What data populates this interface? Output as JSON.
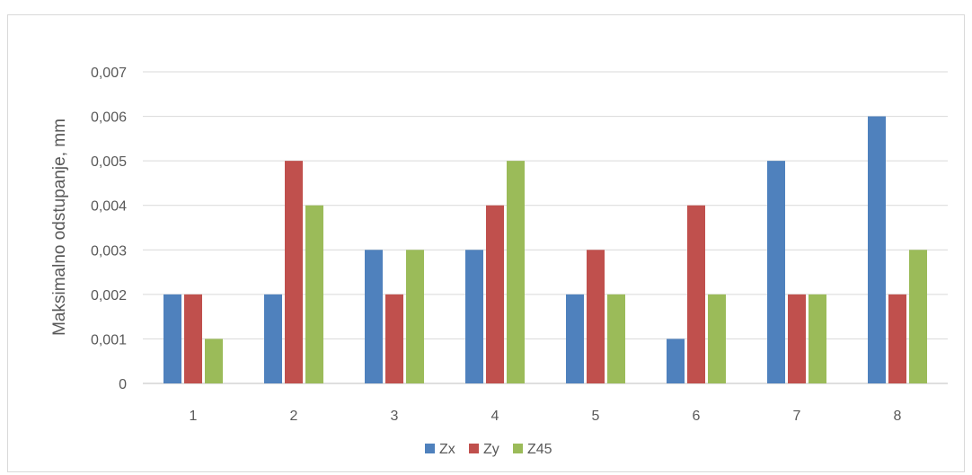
{
  "chart_data": {
    "type": "bar",
    "title": "",
    "xlabel": "",
    "ylabel": "Maksimalno odstupanje, mm",
    "categories": [
      "1",
      "2",
      "3",
      "4",
      "5",
      "6",
      "7",
      "8"
    ],
    "series": [
      {
        "name": "Zx",
        "color": "#4f81bd",
        "values": [
          0.002,
          0.002,
          0.003,
          0.003,
          0.002,
          0.001,
          0.005,
          0.006
        ]
      },
      {
        "name": "Zy",
        "color": "#c0504d",
        "values": [
          0.002,
          0.005,
          0.002,
          0.004,
          0.003,
          0.004,
          0.002,
          0.002
        ]
      },
      {
        "name": "Z45",
        "color": "#9bbb59",
        "values": [
          0.001,
          0.004,
          0.003,
          0.005,
          0.002,
          0.002,
          0.002,
          0.003
        ]
      }
    ],
    "ylim": [
      0,
      0.007
    ],
    "yticks": [
      "0",
      "0,001",
      "0,002",
      "0,003",
      "0,004",
      "0,005",
      "0,006",
      "0,007"
    ],
    "grid": true,
    "legend_position": "bottom"
  }
}
